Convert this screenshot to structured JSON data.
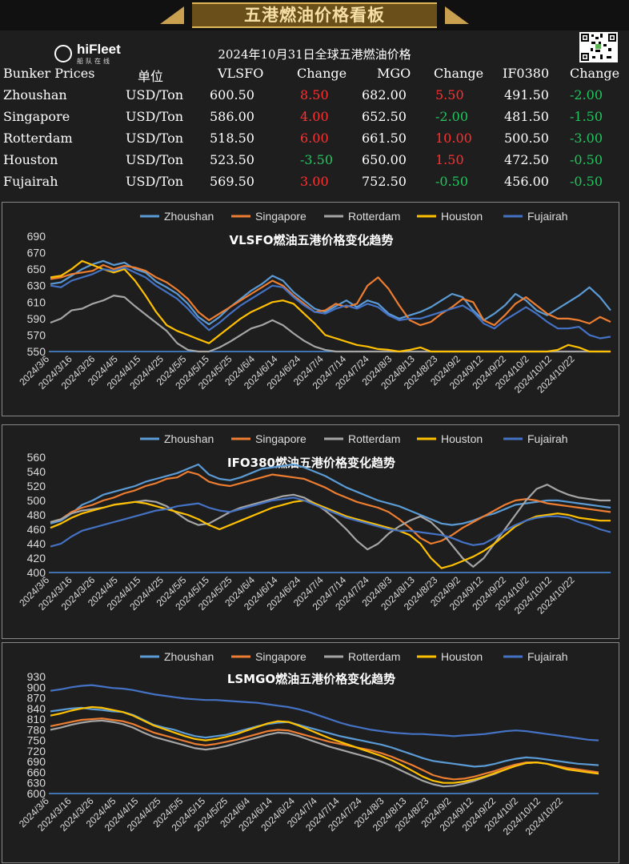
{
  "banner": {
    "title": "五港燃油价格看板"
  },
  "logo": {
    "name": "hiFleet",
    "sub": "船队在线"
  },
  "table": {
    "title": "2024年10月31日全球五港燃油价格",
    "headers": [
      "Bunker Prices",
      "单位",
      "VLSFO",
      "Change",
      "MGO",
      "Change",
      "IF0380",
      "Change"
    ],
    "rows": [
      {
        "port": "Zhoushan",
        "unit": "USD/Ton",
        "vlsfo": "600.50",
        "vlsfo_chg": "8.50",
        "mgo": "682.00",
        "mgo_chg": "5.50",
        "ifo": "491.50",
        "ifo_chg": "-2.00"
      },
      {
        "port": "Singapore",
        "unit": "USD/Ton",
        "vlsfo": "586.00",
        "vlsfo_chg": "4.00",
        "mgo": "652.50",
        "mgo_chg": "-2.00",
        "ifo": "481.50",
        "ifo_chg": "-1.50"
      },
      {
        "port": "Rotterdam",
        "unit": "USD/Ton",
        "vlsfo": "518.50",
        "vlsfo_chg": "6.00",
        "mgo": "661.50",
        "mgo_chg": "10.00",
        "ifo": "500.50",
        "ifo_chg": "-3.00"
      },
      {
        "port": "Houston",
        "unit": "USD/Ton",
        "vlsfo": "523.50",
        "vlsfo_chg": "-3.50",
        "mgo": "650.00",
        "mgo_chg": "1.50",
        "ifo": "472.50",
        "ifo_chg": "-0.50"
      },
      {
        "port": "Fujairah",
        "unit": "USD/Ton",
        "vlsfo": "569.50",
        "vlsfo_chg": "3.00",
        "mgo": "752.50",
        "mgo_chg": "-0.50",
        "ifo": "456.00",
        "ifo_chg": "-0.50"
      }
    ]
  },
  "colors": {
    "Zhoushan": "#5b9bd5",
    "Singapore": "#ed7d31",
    "Rotterdam": "#a5a5a5",
    "Houston": "#ffc000",
    "Fujairah": "#4472c4",
    "up": "#ff3030",
    "down": "#22c55e"
  },
  "chart_data": [
    {
      "type": "line",
      "title": "VLSFO燃油五港价格变化趋势",
      "x_ticks": [
        "2024/3/6",
        "2024/3/16",
        "2024/3/26",
        "2024/4/5",
        "2024/4/15",
        "2024/4/25",
        "2024/5/5",
        "2024/5/15",
        "2024/5/25",
        "2024/6/4",
        "2024/6/14",
        "2024/6/24",
        "2024/7/4",
        "2024/7/14",
        "2024/7/24",
        "2024/8/3",
        "2024/8/13",
        "2024/8/23",
        "2024/9/2",
        "2024/9/12",
        "2024/9/22",
        "2024/10/2",
        "2024/10/12",
        "2024/10/22"
      ],
      "y_ticks": [
        550,
        570,
        590,
        610,
        630,
        650,
        670,
        690
      ],
      "ylim": [
        550,
        690
      ],
      "legend": "top",
      "grid": false,
      "series": [
        {
          "name": "Zhoushan",
          "values": [
            632,
            634,
            642,
            650,
            656,
            660,
            655,
            658,
            650,
            646,
            635,
            628,
            620,
            608,
            592,
            583,
            592,
            604,
            614,
            624,
            632,
            642,
            636,
            622,
            612,
            602,
            598,
            605,
            612,
            604,
            612,
            608,
            596,
            590,
            594,
            598,
            604,
            612,
            620,
            616,
            600,
            588,
            596,
            606,
            620,
            612,
            600,
            594,
            602,
            610,
            618,
            628,
            616,
            600
          ]
        },
        {
          "name": "Singapore",
          "values": [
            638,
            640,
            644,
            646,
            648,
            655,
            650,
            654,
            652,
            648,
            640,
            634,
            625,
            614,
            598,
            588,
            596,
            604,
            612,
            620,
            628,
            636,
            630,
            618,
            608,
            598,
            600,
            608,
            604,
            608,
            630,
            640,
            626,
            606,
            588,
            582,
            586,
            596,
            604,
            614,
            610,
            588,
            582,
            594,
            608,
            616,
            606,
            596,
            590,
            590,
            588,
            584,
            592,
            586
          ]
        },
        {
          "name": "Rotterdam",
          "values": [
            585,
            590,
            600,
            602,
            608,
            612,
            618,
            616,
            605,
            595,
            585,
            575,
            560,
            552,
            548,
            545,
            555,
            562,
            570,
            578,
            582,
            588,
            582,
            572,
            563,
            556,
            552,
            550,
            550,
            550,
            550,
            550,
            550,
            550,
            550,
            550,
            550,
            550,
            550,
            550,
            550,
            550,
            550,
            550,
            550,
            550,
            550,
            550,
            550,
            550,
            550,
            550,
            550,
            550
          ]
        },
        {
          "name": "Houston",
          "values": [
            640,
            642,
            650,
            660,
            655,
            650,
            646,
            650,
            636,
            618,
            598,
            582,
            575,
            570,
            565,
            560,
            570,
            580,
            590,
            598,
            604,
            610,
            612,
            608,
            596,
            584,
            570,
            566,
            562,
            558,
            556,
            553,
            552,
            550,
            552,
            555,
            550,
            550,
            550,
            550,
            550,
            550,
            550,
            550,
            550,
            550,
            550,
            550,
            552,
            558,
            555,
            550,
            550,
            550
          ]
        },
        {
          "name": "Fujairah",
          "values": [
            630,
            628,
            636,
            640,
            644,
            650,
            648,
            652,
            646,
            640,
            630,
            622,
            614,
            602,
            588,
            576,
            585,
            596,
            606,
            614,
            622,
            630,
            628,
            616,
            606,
            598,
            596,
            602,
            606,
            602,
            608,
            604,
            594,
            588,
            590,
            590,
            594,
            598,
            602,
            606,
            598,
            584,
            578,
            588,
            596,
            604,
            596,
            586,
            578,
            578,
            580,
            570,
            566,
            568
          ]
        }
      ]
    },
    {
      "type": "line",
      "title": "IFO380燃油五港价格变化趋势",
      "x_ticks": [
        "2024/3/6",
        "2024/3/16",
        "2024/3/26",
        "2024/4/5",
        "2024/4/15",
        "2024/4/25",
        "2024/5/5",
        "2024/5/15",
        "2024/5/25",
        "2024/6/4",
        "2024/6/14",
        "2024/6/24",
        "2024/7/4",
        "2024/7/14",
        "2024/7/24",
        "2024/8/3",
        "2024/8/13",
        "2024/8/23",
        "2024/9/2",
        "2024/9/12",
        "2024/9/22",
        "2024/10/2",
        "2024/10/12",
        "2024/10/22"
      ],
      "y_ticks": [
        400,
        420,
        440,
        460,
        480,
        500,
        520,
        540,
        560
      ],
      "ylim": [
        400,
        560
      ],
      "legend": "top",
      "grid": false,
      "series": [
        {
          "name": "Zhoushan",
          "values": [
            468,
            472,
            482,
            494,
            500,
            508,
            512,
            516,
            520,
            526,
            530,
            534,
            538,
            544,
            550,
            536,
            530,
            528,
            532,
            538,
            544,
            546,
            548,
            550,
            546,
            540,
            534,
            526,
            518,
            512,
            506,
            500,
            496,
            492,
            486,
            480,
            474,
            468,
            466,
            468,
            472,
            478,
            482,
            488,
            494,
            496,
            498,
            500,
            500,
            498,
            496,
            494,
            492,
            490
          ]
        },
        {
          "name": "Singapore",
          "values": [
            470,
            474,
            484,
            490,
            494,
            500,
            504,
            510,
            514,
            520,
            524,
            530,
            532,
            540,
            536,
            526,
            522,
            520,
            524,
            528,
            532,
            536,
            534,
            532,
            530,
            524,
            518,
            510,
            504,
            498,
            494,
            490,
            484,
            474,
            462,
            448,
            440,
            444,
            452,
            462,
            470,
            478,
            486,
            494,
            500,
            502,
            500,
            496,
            494,
            492,
            490,
            488,
            486,
            484
          ]
        },
        {
          "name": "Rotterdam",
          "values": [
            470,
            474,
            482,
            486,
            488,
            490,
            494,
            496,
            498,
            500,
            498,
            492,
            482,
            472,
            466,
            468,
            476,
            484,
            490,
            494,
            498,
            502,
            506,
            508,
            504,
            496,
            486,
            474,
            460,
            444,
            432,
            440,
            454,
            464,
            472,
            478,
            470,
            456,
            438,
            420,
            408,
            420,
            440,
            460,
            480,
            500,
            516,
            522,
            514,
            508,
            504,
            502,
            500,
            500
          ]
        },
        {
          "name": "Houston",
          "values": [
            462,
            468,
            476,
            482,
            486,
            490,
            494,
            496,
            498,
            496,
            492,
            488,
            484,
            480,
            474,
            466,
            460,
            466,
            472,
            478,
            484,
            490,
            494,
            498,
            500,
            496,
            490,
            484,
            478,
            474,
            470,
            466,
            462,
            458,
            452,
            440,
            420,
            406,
            410,
            416,
            422,
            430,
            440,
            452,
            464,
            472,
            478,
            480,
            482,
            480,
            476,
            474,
            472,
            472
          ]
        },
        {
          "name": "Fujairah",
          "values": [
            436,
            440,
            450,
            458,
            462,
            466,
            470,
            474,
            478,
            482,
            486,
            488,
            492,
            494,
            496,
            490,
            486,
            484,
            488,
            492,
            496,
            500,
            502,
            504,
            500,
            494,
            488,
            482,
            476,
            472,
            468,
            464,
            460,
            458,
            458,
            456,
            454,
            452,
            448,
            442,
            438,
            440,
            448,
            458,
            466,
            472,
            476,
            478,
            478,
            476,
            470,
            466,
            460,
            456
          ]
        }
      ]
    },
    {
      "type": "line",
      "title": "LSMGO燃油五港价格变化趋势",
      "x_ticks": [
        "2024/3/6",
        "2024/3/16",
        "2024/3/26",
        "2024/4/5",
        "2024/4/15",
        "2024/4/25",
        "2024/5/5",
        "2024/5/15",
        "2024/5/25",
        "2024/6/4",
        "2024/6/14",
        "2024/6/24",
        "2024/7/4",
        "2024/7/14",
        "2024/7/24",
        "2024/8/3",
        "2024/8/13",
        "2024/8/23",
        "2024/9/2",
        "2024/9/12",
        "2024/9/22",
        "2024/10/2",
        "2024/10/12",
        "2024/10/22"
      ],
      "y_ticks": [
        600,
        630,
        660,
        690,
        720,
        750,
        780,
        810,
        840,
        870,
        900,
        930
      ],
      "ylim": [
        600,
        930
      ],
      "legend": "top",
      "grid": false,
      "series": [
        {
          "name": "Zhoushan",
          "values": [
            832,
            836,
            840,
            842,
            838,
            836,
            832,
            830,
            822,
            808,
            794,
            786,
            780,
            770,
            762,
            758,
            762,
            766,
            774,
            782,
            790,
            796,
            800,
            802,
            794,
            786,
            778,
            770,
            762,
            756,
            750,
            744,
            738,
            730,
            720,
            710,
            700,
            692,
            688,
            684,
            680,
            676,
            678,
            684,
            692,
            698,
            702,
            700,
            696,
            692,
            688,
            684,
            682,
            680
          ]
        },
        {
          "name": "Singapore",
          "values": [
            790,
            796,
            802,
            808,
            810,
            812,
            808,
            804,
            796,
            784,
            772,
            764,
            756,
            748,
            740,
            736,
            740,
            746,
            752,
            760,
            768,
            776,
            780,
            778,
            770,
            762,
            754,
            746,
            740,
            734,
            728,
            722,
            714,
            704,
            692,
            680,
            666,
            652,
            644,
            640,
            642,
            648,
            656,
            664,
            674,
            682,
            688,
            688,
            684,
            678,
            672,
            668,
            664,
            660
          ]
        },
        {
          "name": "Rotterdam",
          "values": [
            780,
            786,
            794,
            800,
            804,
            806,
            802,
            796,
            786,
            772,
            760,
            752,
            744,
            736,
            728,
            724,
            728,
            734,
            742,
            750,
            758,
            766,
            772,
            770,
            762,
            752,
            742,
            732,
            724,
            716,
            708,
            700,
            690,
            678,
            664,
            650,
            636,
            626,
            620,
            622,
            628,
            636,
            646,
            656,
            668,
            678,
            686,
            688,
            684,
            676,
            668,
            664,
            660,
            656
          ]
        },
        {
          "name": "Houston",
          "values": [
            820,
            826,
            834,
            840,
            844,
            842,
            836,
            830,
            820,
            806,
            792,
            782,
            772,
            762,
            754,
            750,
            754,
            760,
            768,
            778,
            788,
            798,
            804,
            802,
            792,
            780,
            768,
            756,
            746,
            736,
            726,
            716,
            706,
            694,
            680,
            664,
            648,
            636,
            630,
            630,
            634,
            640,
            648,
            658,
            668,
            678,
            686,
            688,
            684,
            676,
            668,
            664,
            660,
            656
          ]
        },
        {
          "name": "Fujairah",
          "values": [
            890,
            894,
            900,
            904,
            906,
            902,
            898,
            896,
            892,
            886,
            880,
            876,
            872,
            868,
            866,
            864,
            864,
            862,
            860,
            858,
            856,
            852,
            848,
            844,
            838,
            830,
            820,
            810,
            800,
            792,
            786,
            780,
            776,
            772,
            770,
            768,
            768,
            766,
            764,
            762,
            764,
            766,
            768,
            772,
            776,
            778,
            776,
            772,
            768,
            764,
            760,
            756,
            752,
            750
          ]
        }
      ]
    }
  ]
}
